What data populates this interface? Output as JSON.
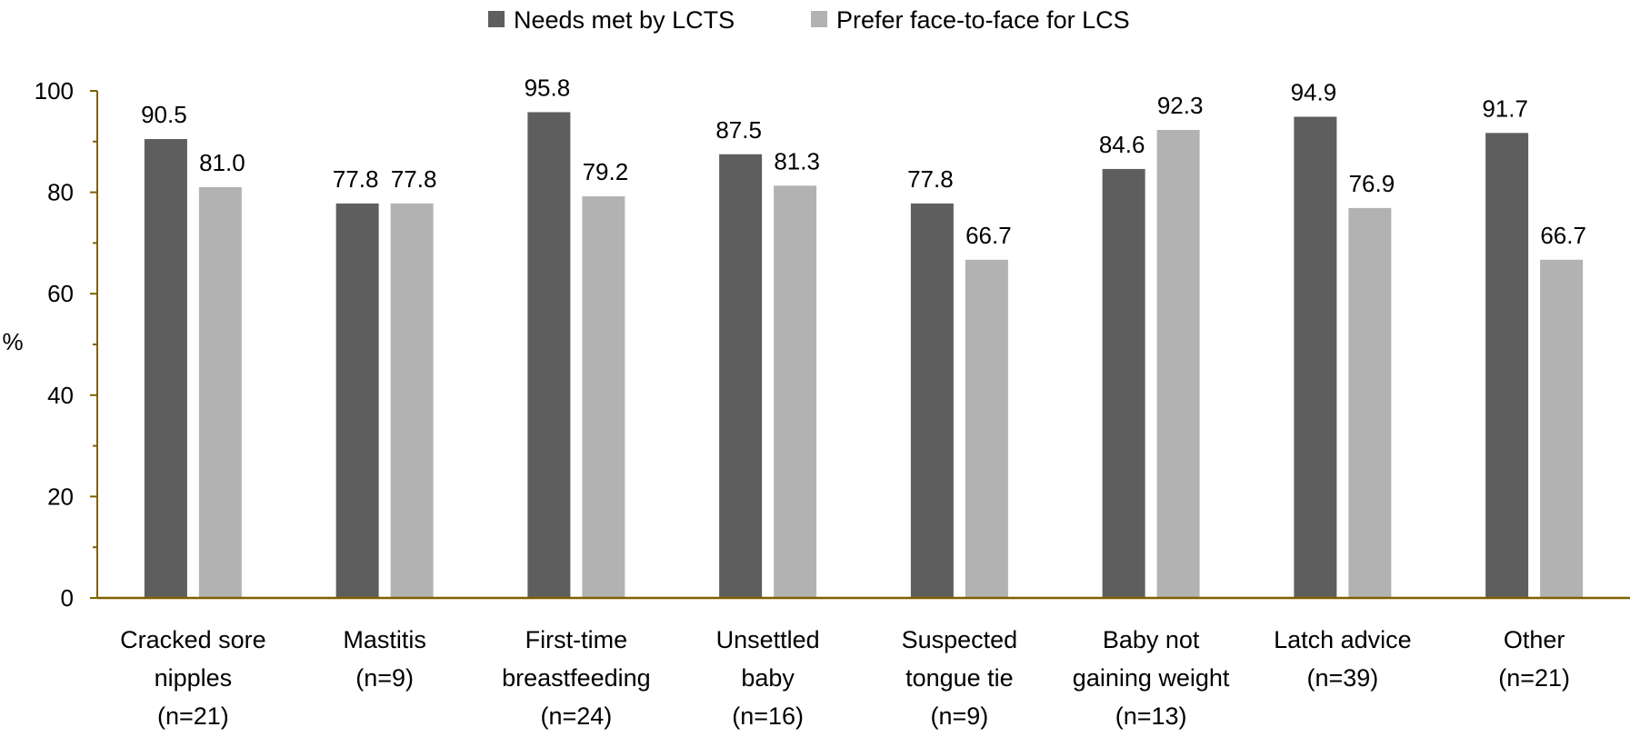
{
  "chart_data": {
    "type": "bar",
    "title": "",
    "xlabel": "",
    "ylabel": "%",
    "ylim": [
      0,
      100
    ],
    "yticks": [
      "0",
      "20",
      "40",
      "60",
      "80",
      "100"
    ],
    "grid": false,
    "legend_position": "top-center",
    "categories": [
      [
        "Cracked sore",
        "nipples",
        "(n=21)"
      ],
      [
        "Mastitis",
        "(n=9)"
      ],
      [
        "First-time",
        "breastfeeding",
        "(n=24)"
      ],
      [
        "Unsettled",
        "baby",
        "(n=16)"
      ],
      [
        "Suspected",
        "tongue tie",
        "(n=9)"
      ],
      [
        "Baby not",
        "gaining weight",
        "(n=13)"
      ],
      [
        "Latch advice",
        "(n=39)"
      ],
      [
        "Other",
        "(n=21)"
      ]
    ],
    "series": [
      {
        "name": "Needs met by LCTS",
        "color": "#5e5e5e",
        "values": [
          90.5,
          77.8,
          95.8,
          87.5,
          77.8,
          84.6,
          94.9,
          91.7
        ],
        "labels": [
          "90.5",
          "77.8",
          "95.8",
          "87.5",
          "77.8",
          "84.6",
          "94.9",
          "91.7"
        ]
      },
      {
        "name": "Prefer face-to-face for LCS",
        "color": "#b2b2b2",
        "values": [
          81.0,
          77.8,
          79.2,
          81.3,
          66.7,
          92.3,
          76.9,
          66.7
        ],
        "labels": [
          "81.0",
          "77.8",
          "79.2",
          "81.3",
          "66.7",
          "92.3",
          "76.9",
          "66.7"
        ]
      }
    ],
    "axis_color": "#7f6000"
  }
}
